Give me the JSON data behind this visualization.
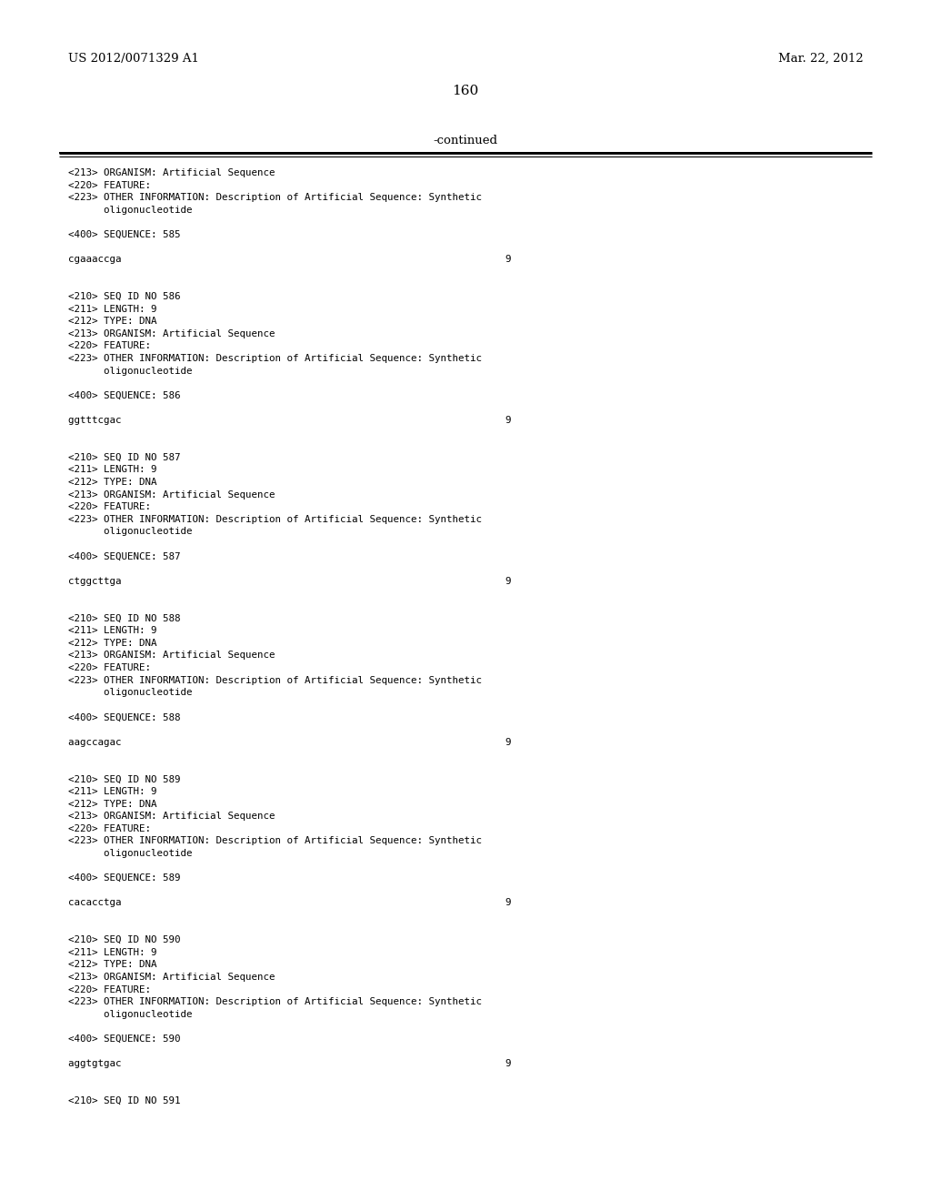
{
  "background_color": "#ffffff",
  "top_left_text": "US 2012/0071329 A1",
  "top_right_text": "Mar. 22, 2012",
  "page_number": "160",
  "continued_text": "-continued",
  "content_lines": [
    "<213> ORGANISM: Artificial Sequence",
    "<220> FEATURE:",
    "<223> OTHER INFORMATION: Description of Artificial Sequence: Synthetic",
    "      oligonucleotide",
    "",
    "<400> SEQUENCE: 585",
    "",
    "cgaaaccga                                                                 9",
    "",
    "",
    "<210> SEQ ID NO 586",
    "<211> LENGTH: 9",
    "<212> TYPE: DNA",
    "<213> ORGANISM: Artificial Sequence",
    "<220> FEATURE:",
    "<223> OTHER INFORMATION: Description of Artificial Sequence: Synthetic",
    "      oligonucleotide",
    "",
    "<400> SEQUENCE: 586",
    "",
    "ggtttcgac                                                                 9",
    "",
    "",
    "<210> SEQ ID NO 587",
    "<211> LENGTH: 9",
    "<212> TYPE: DNA",
    "<213> ORGANISM: Artificial Sequence",
    "<220> FEATURE:",
    "<223> OTHER INFORMATION: Description of Artificial Sequence: Synthetic",
    "      oligonucleotide",
    "",
    "<400> SEQUENCE: 587",
    "",
    "ctggcttga                                                                 9",
    "",
    "",
    "<210> SEQ ID NO 588",
    "<211> LENGTH: 9",
    "<212> TYPE: DNA",
    "<213> ORGANISM: Artificial Sequence",
    "<220> FEATURE:",
    "<223> OTHER INFORMATION: Description of Artificial Sequence: Synthetic",
    "      oligonucleotide",
    "",
    "<400> SEQUENCE: 588",
    "",
    "aagccagac                                                                 9",
    "",
    "",
    "<210> SEQ ID NO 589",
    "<211> LENGTH: 9",
    "<212> TYPE: DNA",
    "<213> ORGANISM: Artificial Sequence",
    "<220> FEATURE:",
    "<223> OTHER INFORMATION: Description of Artificial Sequence: Synthetic",
    "      oligonucleotide",
    "",
    "<400> SEQUENCE: 589",
    "",
    "cacacctga                                                                 9",
    "",
    "",
    "<210> SEQ ID NO 590",
    "<211> LENGTH: 9",
    "<212> TYPE: DNA",
    "<213> ORGANISM: Artificial Sequence",
    "<220> FEATURE:",
    "<223> OTHER INFORMATION: Description of Artificial Sequence: Synthetic",
    "      oligonucleotide",
    "",
    "<400> SEQUENCE: 590",
    "",
    "aggtgtgac                                                                 9",
    "",
    "",
    "<210> SEQ ID NO 591"
  ]
}
